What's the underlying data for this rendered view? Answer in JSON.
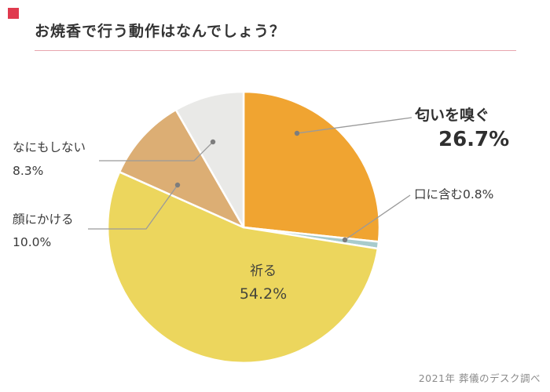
{
  "header": {
    "title": "お焼香で行う動作はなんでしょう？"
  },
  "accent": {
    "square_color": "#E03A4E",
    "underline_color": "#E8A5AE"
  },
  "source": {
    "text": "2021年 葬儀のデスク調べ"
  },
  "chart_data": {
    "type": "pie",
    "title": "お焼香で行う動作はなんでしょう？",
    "start_angle_deg": 0,
    "direction": "clockwise",
    "legend_position": "callouts",
    "slices": [
      {
        "label": "匂いを嗅ぐ",
        "value_pct": 26.7,
        "display": "26.7%",
        "color": "#F0A431",
        "emphasized": true
      },
      {
        "label": "口に含む",
        "value_pct": 0.8,
        "display": "0.8%",
        "color": "#A8CBCC",
        "emphasized": false
      },
      {
        "label": "祈る",
        "value_pct": 54.2,
        "display": "54.2%",
        "color": "#ECD65D",
        "emphasized": false
      },
      {
        "label": "顔にかける",
        "value_pct": 10.0,
        "display": "10.0%",
        "color": "#DCAE74",
        "emphasized": false
      },
      {
        "label": "なにもしない",
        "value_pct": 8.3,
        "display": "8.3%",
        "color": "#E9E9E7",
        "emphasized": false
      }
    ]
  }
}
